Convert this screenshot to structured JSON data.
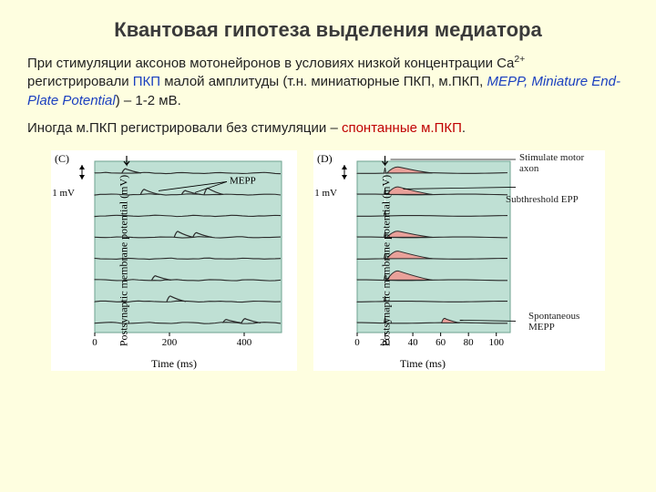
{
  "title": "Квантовая гипотеза выделения медиатора",
  "para1": {
    "t1": "При стимуляции аксонов мотонейронов в условиях низкой концентрации Ca",
    "sup": "2+",
    "t2": " регистрировали ",
    "pkp": "ПКП",
    "t3": " малой амплитуды (т.н. миниатюрные ПКП, м.ПКП, ",
    "mepp": "MEPP, Miniature End-Plate Potential",
    "t4": ") – 1-2 мВ."
  },
  "para2": {
    "t1": "Иногда м.ПКП регистрировали без стимуляции – ",
    "spont": "спонтанные м.ПКП",
    "t2": "."
  },
  "panels": {
    "C": {
      "tag": "(C)",
      "ylabel": "Postsynaptic membrane potential (mV)",
      "xlabel": "Time (ms)",
      "scale_label": "1 mV",
      "mepp_label": "MEPP",
      "xlim": [
        0,
        500
      ],
      "xticks": [
        0,
        200,
        400
      ],
      "bg": "#bfe0d4",
      "bg_border": "#6ea28f",
      "trace_color": "#2a2a2a",
      "n_traces": 8,
      "mepp_positions": [
        [
          [
            80,
            1.0
          ]
        ],
        [
          [
            130,
            1.2
          ],
          [
            240,
            0.9
          ],
          [
            300,
            1.5
          ]
        ],
        [],
        [
          [
            220,
            1.4
          ],
          [
            270,
            1.1
          ]
        ],
        [],
        [
          [
            160,
            1.0
          ]
        ],
        [
          [
            200,
            1.3
          ]
        ],
        [
          [
            350,
            0.8
          ],
          [
            400,
            1.0
          ]
        ]
      ]
    },
    "D": {
      "tag": "(D)",
      "ylabel": "Postsynaptic membrane potential (mV)",
      "xlabel": "Time (ms)",
      "scale_label": "1 mV",
      "annot_stim": "Stimulate motor axon",
      "annot_epp": "Subthreshold EPP",
      "annot_spont": "Spontaneous MEPP",
      "xlim": [
        0,
        110
      ],
      "xticks": [
        0,
        20,
        40,
        60,
        80,
        100
      ],
      "bg": "#bfe0d4",
      "bg_border": "#6ea28f",
      "trace_color": "#2a2a2a",
      "epp_fill": "#e9a19a",
      "n_traces": 8,
      "stim_x": 20,
      "epp_on_traces": [
        0,
        1,
        3,
        4,
        5
      ],
      "spont_mepp": {
        "trace": 7,
        "x": 62
      }
    }
  },
  "colors": {
    "page_bg": "#fefee0",
    "title": "#3a3a3a",
    "blue": "#1a3fbf",
    "red": "#c00000"
  }
}
